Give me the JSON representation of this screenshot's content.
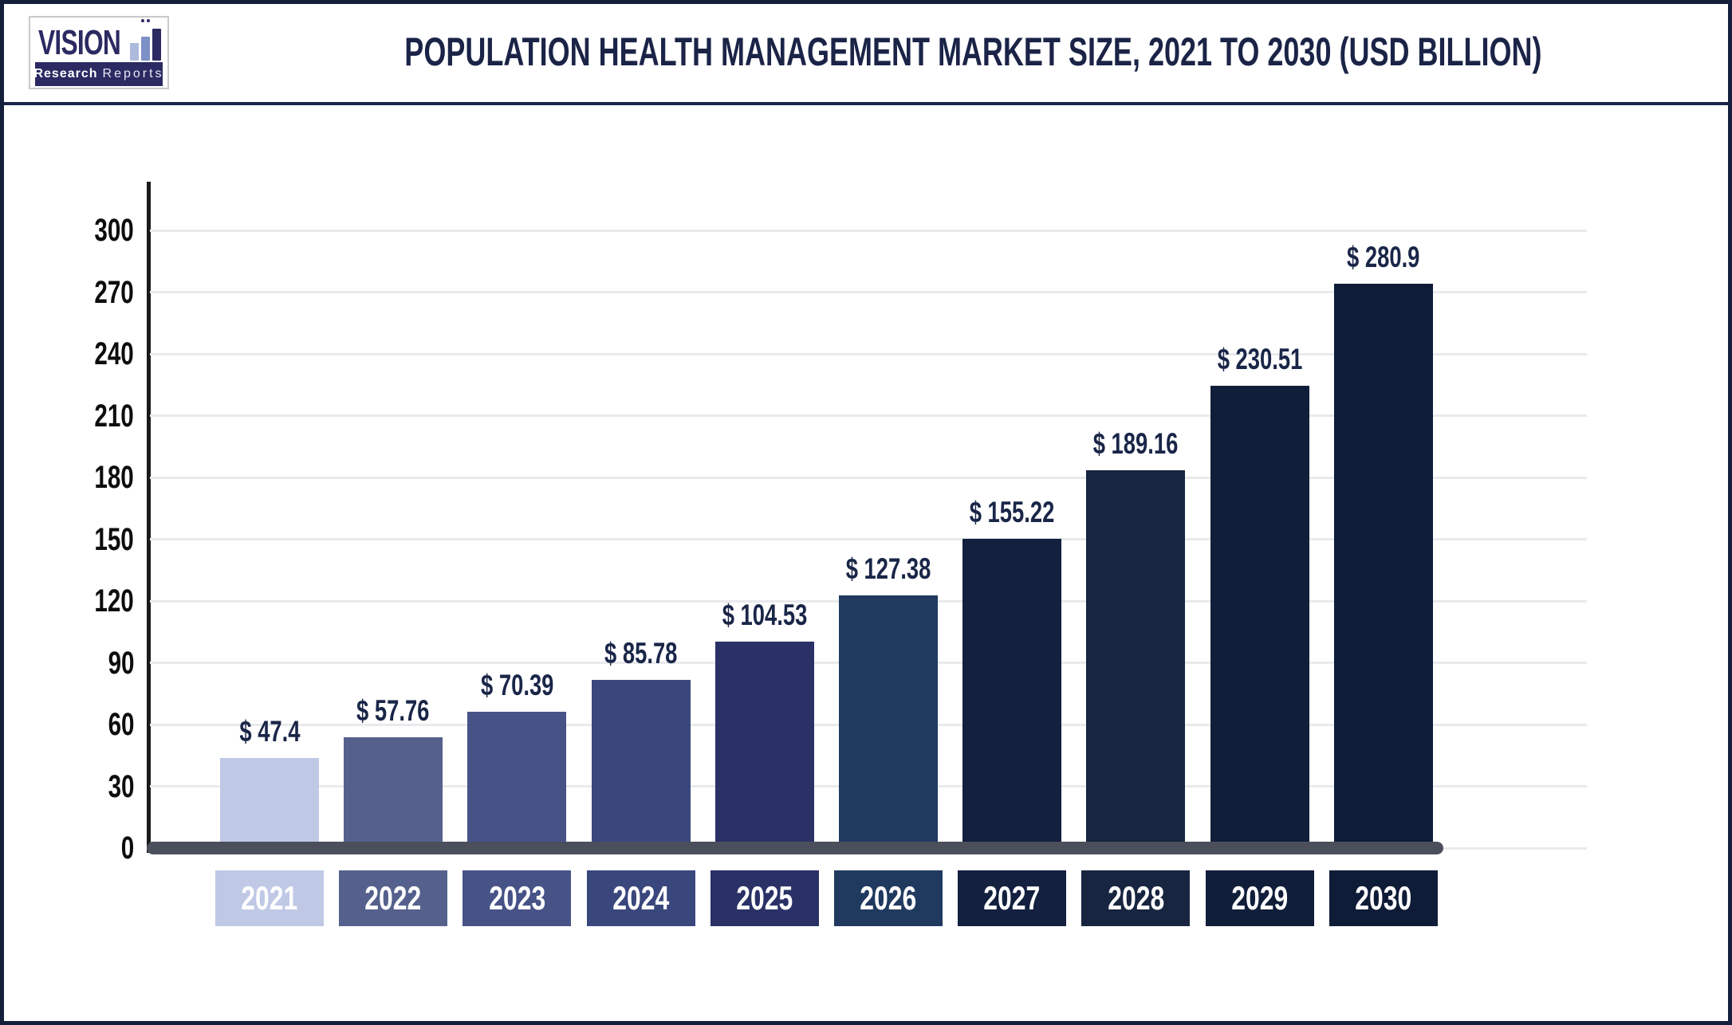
{
  "page": {
    "background": "#ffffff",
    "border_color": "#141f3c",
    "divider_color": "#1b2447"
  },
  "logo": {
    "brand": "VISION",
    "tagline_bold": "Research",
    "tagline_light": "Reports",
    "brand_color": "#2b2a62",
    "logo_bar_colors": [
      "#aebadd",
      "#7d90c7",
      "#2b2a62"
    ]
  },
  "header": {
    "title": "POPULATION HEALTH MANAGEMENT MARKET SIZE, 2021 TO 2030 (USD BILLION)",
    "title_color": "#1b2447"
  },
  "chart_data": {
    "type": "bar",
    "title": "POPULATION HEALTH MANAGEMENT MARKET SIZE, 2021 TO 2030 (USD BILLION)",
    "unit": "USD Billion",
    "categories": [
      "2021",
      "2022",
      "2023",
      "2024",
      "2025",
      "2026",
      "2027",
      "2028",
      "2029",
      "2030"
    ],
    "values": [
      47.4,
      57.76,
      70.39,
      85.78,
      104.53,
      127.38,
      155.22,
      189.16,
      230.51,
      280.9
    ],
    "value_labels": [
      "$ 47.4",
      "$ 57.76",
      "$ 70.39",
      "$ 85.78",
      "$ 104.53",
      "$ 127.38",
      "$ 155.22",
      "$ 189.16",
      "$ 230.51",
      "$ 280.9"
    ],
    "bar_colors": [
      "#bfc9e6",
      "#55618c",
      "#475287",
      "#3a477d",
      "#2a3166",
      "#203a5f",
      "#13203f",
      "#172540",
      "#111e3a",
      "#0f1c38"
    ],
    "ylim": [
      0,
      300
    ],
    "yticks": [
      0,
      30,
      60,
      90,
      120,
      150,
      180,
      210,
      240,
      270,
      300
    ],
    "grid": "horizontal",
    "legend": "none",
    "axis_color": "#1a1a1a",
    "baseline_color": "#4b4f5b",
    "gridline_color": "#e9eaec",
    "tick_label_color": "#0d0d0d",
    "value_label_color": "#1a2648",
    "category_text_color": "#ffffff"
  }
}
